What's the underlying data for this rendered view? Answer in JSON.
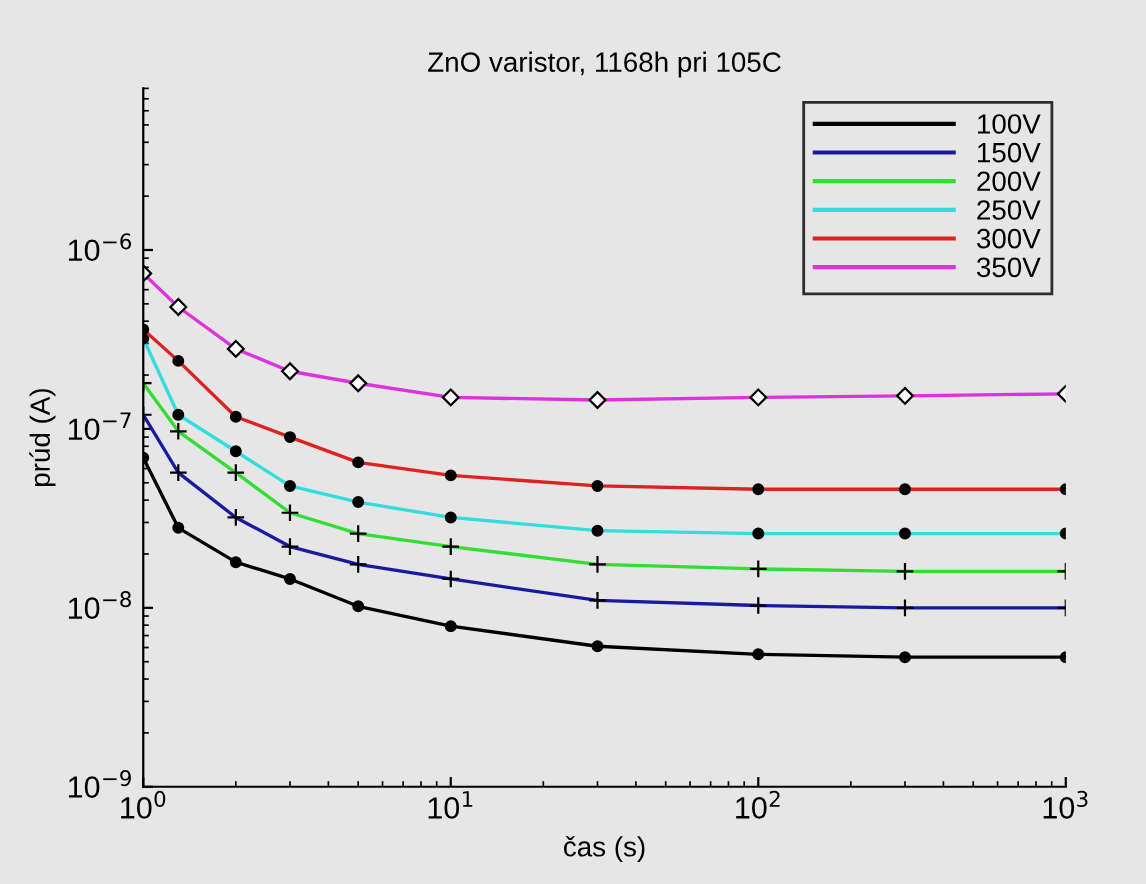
{
  "chart_data": {
    "type": "line",
    "title": "ZnO varistor, 1168h pri 105C",
    "xlabel": "čas (s)",
    "ylabel": "prúd (A)",
    "log": "xy",
    "grid": false,
    "legend": "top right",
    "xlim": [
      1,
      1000
    ],
    "ylim": [
      1e-09,
      8e-06
    ],
    "xticks": [
      {
        "value": 1,
        "label": "10$^{0}$"
      },
      {
        "value": 10,
        "label": "10$^{1}$"
      },
      {
        "value": 100,
        "label": "10$^{2}$"
      },
      {
        "value": 1000,
        "label": "10$^{3}$"
      }
    ],
    "yticks": [
      {
        "value": 1e-09,
        "label": "10$^{−9}$"
      },
      {
        "value": 1e-08,
        "label": "10$^{−8}$"
      },
      {
        "value": 1e-07,
        "label": "10$^{−7}$"
      },
      {
        "value": 1e-06,
        "label": "10$^{−6}$"
      }
    ],
    "x": [
      1,
      1.3,
      2,
      3,
      5,
      10,
      30,
      100,
      300,
      1000
    ],
    "series": [
      {
        "name": "100V",
        "color": "#000000",
        "marker": "circle",
        "values": [
          6.9e-08,
          2.8e-08,
          1.8e-08,
          1.45e-08,
          1.02e-08,
          7.9e-09,
          6.1e-09,
          5.5e-09,
          5.3e-09,
          5.3e-09
        ]
      },
      {
        "name": "150V",
        "color": "#1a1aa0",
        "marker": "cross",
        "values": [
          1.2e-07,
          5.7e-08,
          3.2e-08,
          2.2e-08,
          1.75e-08,
          1.45e-08,
          1.1e-08,
          1.03e-08,
          1e-08,
          1e-08
        ]
      },
      {
        "name": "200V",
        "color": "#33dd33",
        "marker": "cross",
        "values": [
          1.8e-07,
          9.7e-08,
          5.7e-08,
          3.4e-08,
          2.6e-08,
          2.2e-08,
          1.75e-08,
          1.65e-08,
          1.6e-08,
          1.6e-08
        ]
      },
      {
        "name": "250V",
        "color": "#33dddd",
        "marker": "circle",
        "values": [
          3.2e-07,
          1.2e-07,
          7.5e-08,
          4.8e-08,
          3.9e-08,
          3.2e-08,
          2.7e-08,
          2.6e-08,
          2.6e-08,
          2.6e-08
        ]
      },
      {
        "name": "300V",
        "color": "#dd2222",
        "marker": "circle",
        "values": [
          3.6e-07,
          2.4e-07,
          1.17e-07,
          9e-08,
          6.5e-08,
          5.5e-08,
          4.8e-08,
          4.6e-08,
          4.6e-08,
          4.6e-08
        ]
      },
      {
        "name": "350V",
        "color": "#dd33dd",
        "marker": "diamond",
        "values": [
          7.4e-07,
          4.8e-07,
          2.8e-07,
          2.1e-07,
          1.8e-07,
          1.5e-07,
          1.45e-07,
          1.5e-07,
          1.53e-07,
          1.57e-07
        ]
      }
    ]
  }
}
